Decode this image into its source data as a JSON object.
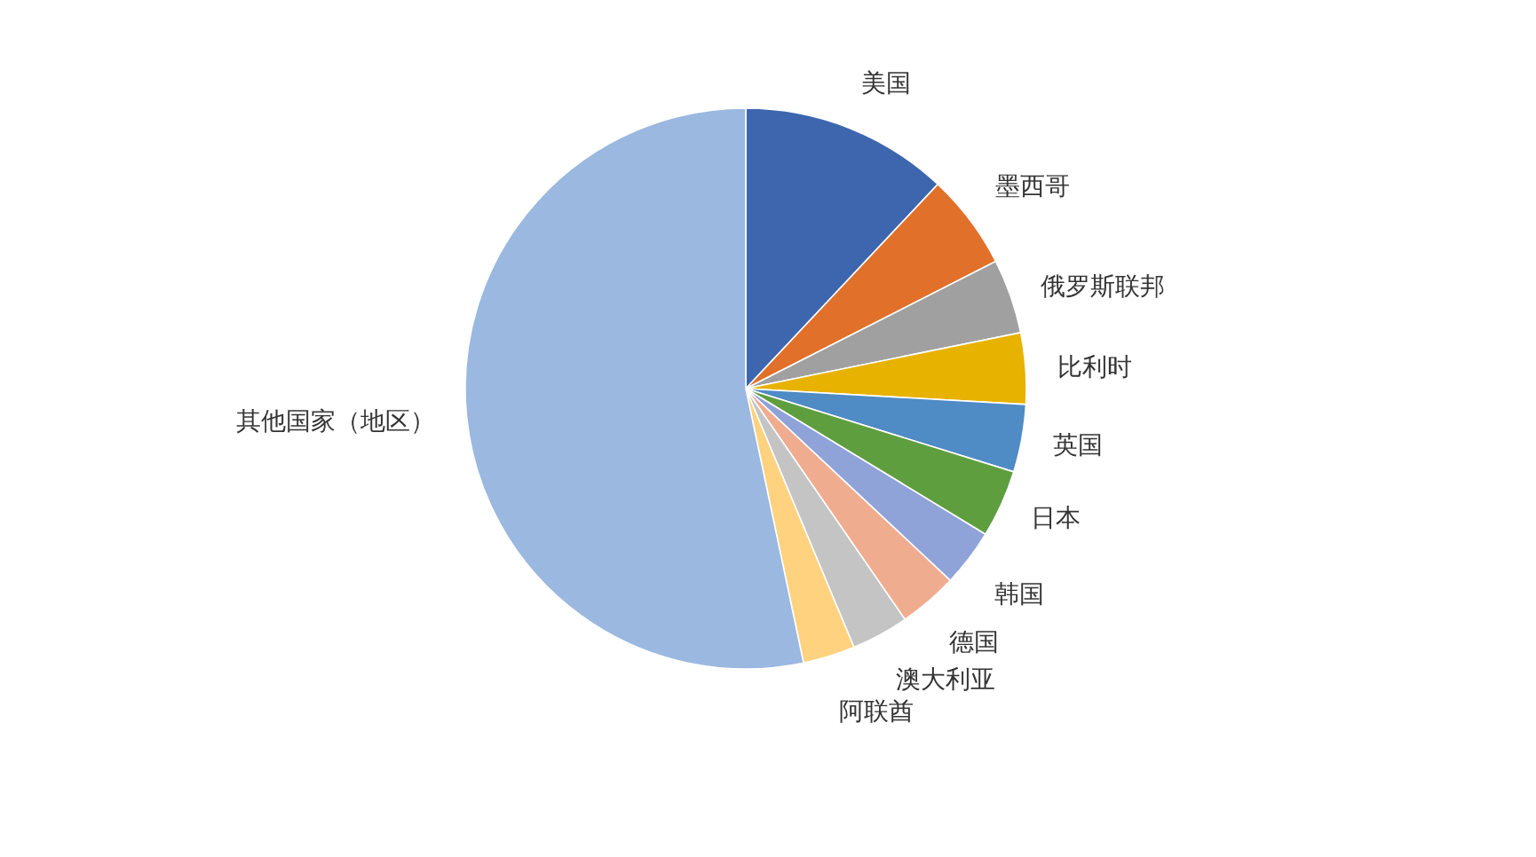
{
  "chart_data": {
    "type": "pie",
    "legend": false,
    "categories": [
      "美国",
      "墨西哥",
      "俄罗斯联邦",
      "比利时",
      "英国",
      "日本",
      "韩国",
      "德国",
      "澳大利亚",
      "阿联酋",
      "其他国家（地区）"
    ],
    "values": [
      12.0,
      5.5,
      4.3,
      4.1,
      3.9,
      3.9,
      3.3,
      3.4,
      3.3,
      3.0,
      53.3
    ],
    "colors": [
      "#3d66ae",
      "#e0702a",
      "#a0a0a0",
      "#e8b200",
      "#4f8bc4",
      "#5f9e3f",
      "#8fa3d9",
      "#f0ac8f",
      "#c4c4c4",
      "#ffd27f",
      "#9ab8e0"
    ]
  }
}
